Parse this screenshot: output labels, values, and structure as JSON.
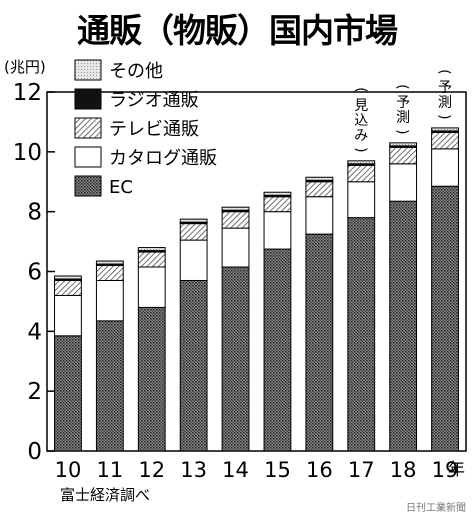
{
  "title": "通販（物販）国内市場",
  "credit": "日刊工業新聞",
  "chart_data": {
    "type": "bar",
    "stacked": true,
    "title": "通販（物販）国内市場",
    "unit": "(兆円)",
    "x_suffix": "年",
    "source": "富士経済調べ",
    "categories": [
      "10",
      "11",
      "12",
      "13",
      "14",
      "15",
      "16",
      "17",
      "18",
      "19"
    ],
    "bar_notes": [
      "",
      "",
      "",
      "",
      "",
      "",
      "",
      "(見込み)",
      "(予測)",
      "(予測)"
    ],
    "ylim": [
      0,
      12
    ],
    "yticks": [
      0,
      2,
      4,
      6,
      8,
      10,
      12
    ],
    "legend_position": "top-left",
    "series": [
      {
        "name": "EC",
        "pattern": "dots",
        "color": "#555555",
        "values": [
          3.85,
          4.35,
          4.8,
          5.7,
          6.15,
          6.75,
          7.25,
          7.8,
          8.35,
          8.85
        ]
      },
      {
        "name": "カタログ通販",
        "pattern": "solid",
        "color": "#ffffff",
        "values": [
          1.35,
          1.35,
          1.35,
          1.35,
          1.3,
          1.25,
          1.25,
          1.2,
          1.25,
          1.25
        ]
      },
      {
        "name": "テレビ通販",
        "pattern": "hatch",
        "color": "#ffffff",
        "values": [
          0.5,
          0.5,
          0.5,
          0.55,
          0.55,
          0.5,
          0.5,
          0.55,
          0.55,
          0.55
        ]
      },
      {
        "name": "ラジオ通販",
        "pattern": "solid",
        "color": "#111111",
        "values": [
          0.05,
          0.05,
          0.05,
          0.05,
          0.05,
          0.05,
          0.05,
          0.05,
          0.05,
          0.05
        ]
      },
      {
        "name": "その他",
        "pattern": "dots-light",
        "color": "#dddddd",
        "values": [
          0.1,
          0.1,
          0.1,
          0.1,
          0.1,
          0.1,
          0.1,
          0.1,
          0.1,
          0.1
        ]
      }
    ]
  }
}
